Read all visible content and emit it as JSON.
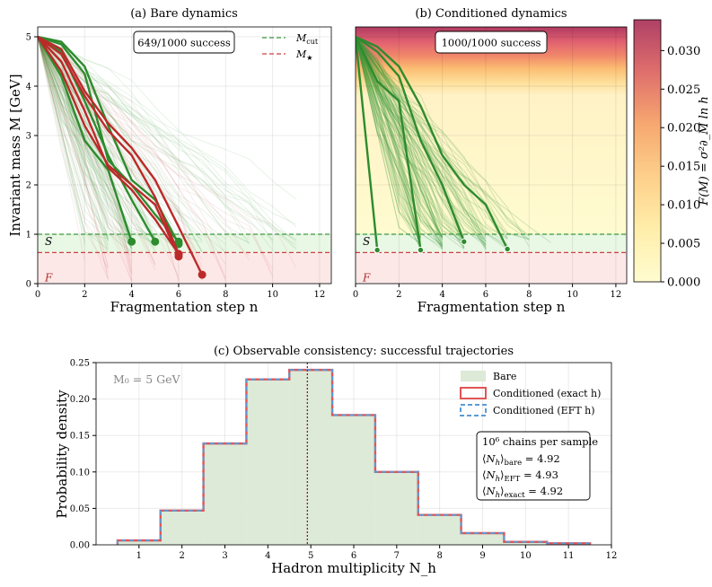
{
  "chart_data": [
    {
      "type": "line",
      "title": "(a) Bare dynamics",
      "xlabel": "Fragmentation step n",
      "ylabel": "Invariant mass M [GeV]",
      "xlim": [
        0,
        12.5
      ],
      "ylim": [
        0,
        5.2
      ],
      "xticks": [
        "0",
        "2",
        "4",
        "6",
        "8",
        "10",
        "12"
      ],
      "yticks": [
        "0",
        "1",
        "2",
        "3",
        "4",
        "5"
      ],
      "annotation": "649/1000 success",
      "thresholds": [
        {
          "name": "M_cut",
          "label": "M",
          "sub": "cut",
          "value": 1.0,
          "color": "#3a9a3a"
        },
        {
          "name": "M_star",
          "label": "M",
          "sub": "★",
          "value": 0.63,
          "color": "#c94040"
        }
      ],
      "region_labels": {
        "success": "S",
        "failure": "F"
      },
      "series": [
        {
          "name": "success-1",
          "outcome": "success",
          "x": [
            0,
            1,
            2,
            3,
            4
          ],
          "y": [
            5.0,
            4.2,
            2.9,
            2.3,
            0.85
          ]
        },
        {
          "name": "success-2",
          "outcome": "success",
          "x": [
            0,
            1,
            2,
            3,
            4,
            5
          ],
          "y": [
            5.0,
            4.7,
            3.7,
            2.6,
            1.7,
            0.85
          ]
        },
        {
          "name": "success-3",
          "outcome": "success",
          "x": [
            0,
            1,
            2,
            3,
            4,
            5,
            6
          ],
          "y": [
            5.0,
            4.9,
            4.4,
            3.2,
            2.1,
            1.7,
            0.8
          ]
        },
        {
          "name": "success-4",
          "outcome": "success",
          "x": [
            0,
            1,
            2,
            3,
            4,
            5,
            6
          ],
          "y": [
            5.0,
            4.85,
            4.25,
            2.5,
            2.0,
            1.4,
            0.85
          ]
        },
        {
          "name": "failure-1",
          "outcome": "failure",
          "x": [
            0,
            1,
            2,
            3,
            4,
            5,
            6
          ],
          "y": [
            5.0,
            4.3,
            3.2,
            2.4,
            2.0,
            1.6,
            0.55
          ]
        },
        {
          "name": "failure-2",
          "outcome": "failure",
          "x": [
            0,
            1,
            2,
            3,
            4,
            5,
            6
          ],
          "y": [
            5.0,
            4.65,
            3.8,
            3.1,
            2.6,
            1.75,
            0.6
          ]
        },
        {
          "name": "failure-3",
          "outcome": "failure",
          "x": [
            0,
            1,
            2,
            3,
            4,
            5,
            6,
            7
          ],
          "y": [
            5.0,
            4.75,
            3.9,
            3.25,
            2.75,
            2.1,
            1.15,
            0.18
          ]
        },
        {
          "name": "failure-4",
          "outcome": "failure",
          "x": [
            0,
            1,
            2,
            3,
            4,
            5,
            6
          ],
          "y": [
            5.0,
            4.5,
            3.5,
            2.35,
            1.9,
            1.3,
            0.6
          ]
        }
      ]
    },
    {
      "type": "heatmap",
      "title": "(b) Conditioned dynamics",
      "xlabel": "Fragmentation step n",
      "xlim": [
        0,
        12.5
      ],
      "ylim": [
        0,
        5.2
      ],
      "xticks": [
        "0",
        "2",
        "4",
        "6",
        "8",
        "10",
        "12"
      ],
      "annotation": "1000/1000 success",
      "colorbar": {
        "label": "F(M) = σ²∂_M ln h",
        "range": [
          0.0,
          0.034
        ],
        "ticks": [
          "0.000",
          "0.005",
          "0.010",
          "0.015",
          "0.020",
          "0.025",
          "0.030"
        ],
        "low_color": "#fffcd0",
        "high_color": "#b0406a"
      },
      "region_labels": {
        "success": "S",
        "failure": "F"
      },
      "series": [
        {
          "name": "cond-1",
          "outcome": "success",
          "x": [
            0,
            1
          ],
          "y": [
            5.0,
            0.68
          ]
        },
        {
          "name": "cond-2",
          "outcome": "success",
          "x": [
            0,
            1,
            2,
            3
          ],
          "y": [
            5.0,
            4.1,
            3.7,
            0.68
          ]
        },
        {
          "name": "cond-3",
          "outcome": "success",
          "x": [
            0,
            1,
            2,
            3,
            4,
            5
          ],
          "y": [
            5.0,
            4.7,
            4.2,
            2.9,
            2.0,
            0.85
          ]
        },
        {
          "name": "cond-4",
          "outcome": "success",
          "x": [
            0,
            1,
            2,
            3,
            4,
            5,
            6,
            7
          ],
          "y": [
            5.0,
            4.8,
            4.4,
            3.6,
            2.6,
            2.0,
            1.6,
            0.7
          ]
        }
      ]
    },
    {
      "type": "bar",
      "title": "(c) Observable consistency: successful trajectories",
      "xlabel": "Hadron multiplicity N_h",
      "ylabel": "Probability density",
      "xlim": [
        0.0,
        12.0
      ],
      "ylim": [
        0,
        0.25
      ],
      "xticks": [
        "1",
        "2",
        "3",
        "4",
        "5",
        "6",
        "7",
        "8",
        "9",
        "10",
        "11",
        "12"
      ],
      "yticks": [
        "0.00",
        "0.05",
        "0.10",
        "0.15",
        "0.20",
        "0.25"
      ],
      "annotation": "M₀ = 5 GeV",
      "categories": [
        1,
        2,
        3,
        4,
        5,
        6,
        7,
        8,
        9,
        10,
        11
      ],
      "series": [
        {
          "name": "Bare",
          "values": [
            0.006,
            0.047,
            0.139,
            0.227,
            0.24,
            0.178,
            0.1,
            0.041,
            0.016,
            0.004,
            0.002
          ]
        },
        {
          "name": "Conditioned (exact h)",
          "values": [
            0.006,
            0.047,
            0.139,
            0.227,
            0.24,
            0.178,
            0.1,
            0.041,
            0.016,
            0.004,
            0.002
          ]
        },
        {
          "name": "Conditioned (EFT h)",
          "values": [
            0.006,
            0.047,
            0.139,
            0.227,
            0.24,
            0.178,
            0.1,
            0.041,
            0.016,
            0.004,
            0.002
          ]
        }
      ],
      "mean_line": 4.92,
      "stats_box": {
        "header": "10⁶ chains per sample",
        "rows": [
          {
            "sym": "N",
            "sub": "h",
            "tag": "bare",
            "value": "4.92"
          },
          {
            "sym": "N",
            "sub": "h",
            "tag": "EFT",
            "value": "4.93"
          },
          {
            "sym": "N",
            "sub": "h",
            "tag": "exact",
            "value": "4.92"
          }
        ]
      }
    }
  ]
}
